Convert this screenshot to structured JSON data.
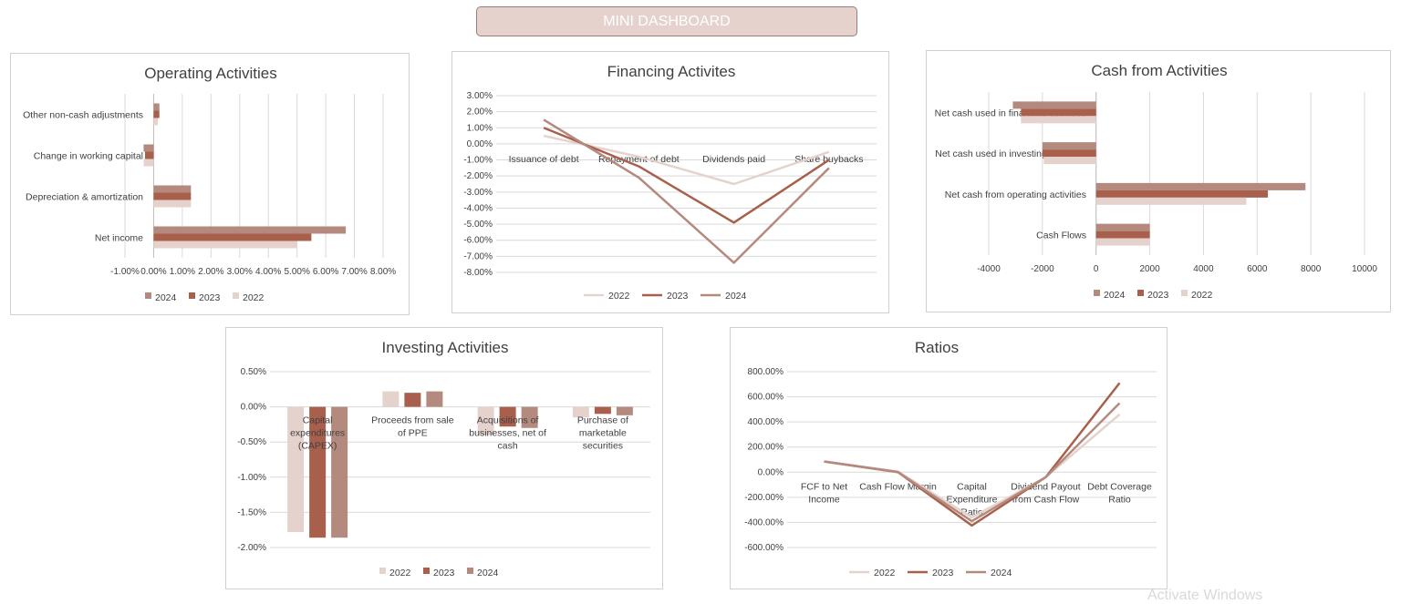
{
  "dashboard": {
    "title": "MINI DASHBOARD",
    "watermark": "Activate Windows"
  },
  "colors": {
    "2022": "#e6d2cd",
    "2023": "#a8604c",
    "2024": "#b48a7e"
  },
  "chart_data": [
    {
      "id": "operating",
      "type": "bar",
      "orientation": "horizontal",
      "title": "Operating Activities",
      "categories": [
        "Net income",
        "Depreciation & amortization",
        "Change in working capital",
        "Other non-cash adjustments"
      ],
      "series": [
        {
          "name": "2024",
          "values": [
            0.067,
            0.013,
            -0.0035,
            0.002
          ]
        },
        {
          "name": "2023",
          "values": [
            0.055,
            0.013,
            -0.003,
            0.002
          ]
        },
        {
          "name": "2022",
          "values": [
            0.05,
            0.013,
            -0.0035,
            0.0015
          ]
        }
      ],
      "xlim": [
        -0.01,
        0.08
      ],
      "xticks": [
        "-1.00%",
        "0.00%",
        "1.00%",
        "2.00%",
        "3.00%",
        "4.00%",
        "5.00%",
        "6.00%",
        "7.00%",
        "8.00%"
      ],
      "legend": "bottom",
      "grid": true
    },
    {
      "id": "financing",
      "type": "line",
      "title": "Financing Activites",
      "categories": [
        "Issuance of debt",
        "Repayment of debt",
        "Dividends paid",
        "Share buybacks"
      ],
      "series": [
        {
          "name": "2022",
          "values": [
            0.005,
            -0.008,
            -0.025,
            -0.005
          ]
        },
        {
          "name": "2023",
          "values": [
            0.01,
            -0.014,
            -0.049,
            -0.01
          ]
        },
        {
          "name": "2024",
          "values": [
            0.015,
            -0.021,
            -0.074,
            -0.015
          ]
        }
      ],
      "ylim": [
        -0.08,
        0.03
      ],
      "yticks": [
        "3.00%",
        "2.00%",
        "1.00%",
        "0.00%",
        "-1.00%",
        "-2.00%",
        "-3.00%",
        "-4.00%",
        "-5.00%",
        "-6.00%",
        "-7.00%",
        "-8.00%"
      ],
      "legend": "bottom",
      "grid": true
    },
    {
      "id": "cashfrom",
      "type": "bar",
      "orientation": "horizontal",
      "title": "Cash from Activities",
      "categories": [
        "Cash Flows",
        "Net cash from operating activities",
        "Net cash used in investing activities",
        "Net cash used in financing activities"
      ],
      "series": [
        {
          "name": "2024",
          "values": [
            2000,
            7800,
            -2000,
            -3100
          ]
        },
        {
          "name": "2023",
          "values": [
            2000,
            6400,
            -2000,
            -2800
          ]
        },
        {
          "name": "2022",
          "values": [
            2000,
            5600,
            -1950,
            -2800
          ]
        }
      ],
      "xlim": [
        -4000,
        10000
      ],
      "xticks": [
        "-4000",
        "-2000",
        "0",
        "2000",
        "4000",
        "6000",
        "8000",
        "10000"
      ],
      "legend": "bottom",
      "grid": true
    },
    {
      "id": "investing",
      "type": "bar",
      "orientation": "vertical",
      "title": "Investing Activities",
      "categories": [
        "Capital expenditures (CAPEX)",
        "Proceeds from sale of PPE",
        "Acquisitions of businesses, net of cash",
        "Purchase of marketable securities"
      ],
      "series": [
        {
          "name": "2022",
          "values": [
            -0.0178,
            0.0022,
            -0.004,
            -0.0015
          ]
        },
        {
          "name": "2023",
          "values": [
            -0.0186,
            0.002,
            -0.0028,
            -0.001
          ]
        },
        {
          "name": "2024",
          "values": [
            -0.0186,
            0.0022,
            -0.003,
            -0.0012
          ]
        }
      ],
      "ylim": [
        -0.02,
        0.005
      ],
      "yticks": [
        "0.50%",
        "0.00%",
        "-0.50%",
        "-1.00%",
        "-1.50%",
        "-2.00%"
      ],
      "legend": "bottom",
      "grid": true
    },
    {
      "id": "ratios",
      "type": "line",
      "title": "Ratios",
      "categories": [
        "FCF to Net Income",
        "Cash Flow Margin",
        "Capital Expenditure Ratio",
        "Dividend Payout from Cash Flow",
        "Debt Coverage Ratio"
      ],
      "series": [
        {
          "name": "2022",
          "values": [
            0.85,
            0.05,
            -3.6,
            -0.4,
            4.6
          ]
        },
        {
          "name": "2023",
          "values": [
            0.85,
            0.0,
            -4.25,
            -0.4,
            7.1
          ]
        },
        {
          "name": "2024",
          "values": [
            0.85,
            0.0,
            -3.9,
            -0.4,
            5.5
          ]
        }
      ],
      "ylim": [
        -6,
        8
      ],
      "yticks": [
        "800.00%",
        "600.00%",
        "400.00%",
        "200.00%",
        "0.00%",
        "-200.00%",
        "-400.00%",
        "-600.00%"
      ],
      "legend": "bottom",
      "grid": true
    }
  ]
}
